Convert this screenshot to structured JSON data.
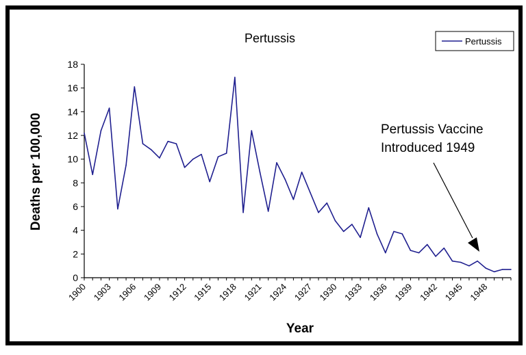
{
  "chart_data": {
    "type": "line",
    "title": "Pertussis",
    "xlabel": "Year",
    "ylabel": "Deaths per 100,000",
    "ylim": [
      0,
      18
    ],
    "yticks": [
      0,
      2,
      4,
      6,
      8,
      10,
      12,
      14,
      16,
      18
    ],
    "xticks": [
      "1900",
      "1903",
      "1906",
      "1909",
      "1912",
      "1915",
      "1918",
      "1921",
      "1924",
      "1927",
      "1930",
      "1933",
      "1936",
      "1939",
      "1942",
      "1945",
      "1948"
    ],
    "legend_position": "top-right",
    "grid": false,
    "series": [
      {
        "name": "Pertussis",
        "color": "#1f1f8f",
        "x": [
          1900,
          1901,
          1902,
          1903,
          1904,
          1905,
          1906,
          1907,
          1908,
          1909,
          1910,
          1911,
          1912,
          1913,
          1914,
          1915,
          1916,
          1917,
          1918,
          1919,
          1920,
          1921,
          1922,
          1923,
          1924,
          1925,
          1926,
          1927,
          1928,
          1929,
          1930,
          1931,
          1932,
          1933,
          1934,
          1935,
          1936,
          1937,
          1938,
          1939,
          1940,
          1941,
          1942,
          1943,
          1944,
          1945,
          1946,
          1947,
          1948,
          1949,
          1950,
          1951
        ],
        "values": [
          12.2,
          8.7,
          12.4,
          14.3,
          5.8,
          9.5,
          16.1,
          11.3,
          10.8,
          10.1,
          11.5,
          11.3,
          9.3,
          10.0,
          10.4,
          8.1,
          10.2,
          10.5,
          16.9,
          5.5,
          12.4,
          8.9,
          5.6,
          9.7,
          8.3,
          6.6,
          8.9,
          7.2,
          5.5,
          6.3,
          4.8,
          3.9,
          4.5,
          3.4,
          5.9,
          3.7,
          2.1,
          3.9,
          3.7,
          2.3,
          2.1,
          2.8,
          1.8,
          2.5,
          1.4,
          1.3,
          1.0,
          1.4,
          0.8,
          0.5,
          0.7,
          0.7
        ]
      }
    ],
    "annotations": [
      {
        "line1": "Pertussis Vaccine",
        "line2": "Introduced 1949"
      }
    ]
  }
}
